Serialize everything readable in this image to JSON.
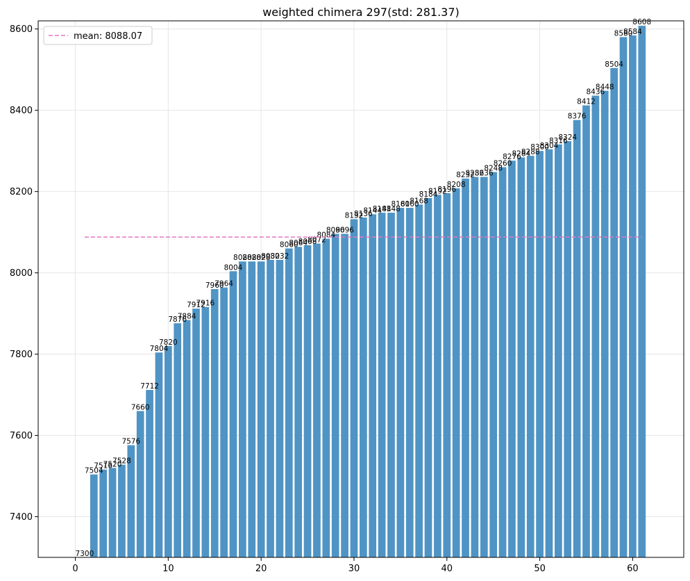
{
  "chart_data": {
    "type": "bar",
    "title": "weighted chimera 297(std: 281.37)",
    "xlabel": "",
    "ylabel": "",
    "xlim": [
      -4.0,
      65.5
    ],
    "ylim": [
      7300,
      8620
    ],
    "x_ticks": [
      0,
      10,
      20,
      30,
      40,
      50,
      60
    ],
    "y_ticks": [
      7400,
      7600,
      7800,
      8000,
      8200,
      8400,
      8600
    ],
    "grid": true,
    "bar_color": "#4f94c4",
    "legend_position": "top-left",
    "categories": [
      1,
      2,
      3,
      4,
      5,
      6,
      7,
      8,
      9,
      10,
      11,
      12,
      13,
      14,
      15,
      16,
      17,
      18,
      19,
      20,
      21,
      22,
      23,
      24,
      25,
      26,
      27,
      28,
      29,
      30,
      31,
      32,
      33,
      34,
      35,
      36,
      37,
      38,
      39,
      40,
      41,
      42,
      43,
      44,
      45,
      46,
      47,
      48,
      49,
      50,
      51,
      52,
      53,
      54,
      55,
      56,
      57,
      58,
      59,
      60,
      61
    ],
    "values": [
      7300,
      7504,
      7516,
      7520,
      7528,
      7576,
      7660,
      7712,
      7804,
      7820,
      7876,
      7884,
      7912,
      7916,
      7960,
      7964,
      8004,
      8028,
      8028,
      8028,
      8032,
      8032,
      8060,
      8064,
      8068,
      8072,
      8084,
      8096,
      8096,
      8132,
      8136,
      8144,
      8148,
      8148,
      8160,
      8160,
      8168,
      8184,
      8192,
      8196,
      8208,
      8232,
      8236,
      8236,
      8248,
      8260,
      8276,
      8284,
      8288,
      8300,
      8304,
      8316,
      8324,
      8376,
      8412,
      8436,
      8448,
      8504,
      8580,
      8584,
      8608
    ],
    "bar_labels": [
      "7300",
      "7504",
      "7516",
      "7520",
      "7528",
      "7576",
      "7660",
      "7712",
      "7804",
      "7820",
      "7876",
      "7884",
      "7912",
      "7916",
      "7960",
      "7964",
      "8004",
      "8028",
      "8028",
      "8028",
      "8032",
      "8032",
      "8060",
      "8064",
      "8068",
      "8072",
      "8084",
      "8096",
      "8096",
      "8132",
      "8136",
      "8144",
      "8148",
      "8148",
      "8160",
      "8160",
      "8168",
      "8184",
      "8192",
      "8196",
      "8208",
      "8232",
      "8236",
      "8236",
      "8248",
      "8260",
      "8276",
      "8284",
      "8288",
      "8300",
      "8304",
      "8316",
      "8324",
      "8376",
      "8412",
      "8436",
      "8448",
      "8504",
      "8580",
      "8584",
      "8608"
    ],
    "mean_line": {
      "label": "mean: 8088.07",
      "value": 8088.07,
      "x_range": [
        1,
        61
      ],
      "color": "#e377c2"
    }
  }
}
